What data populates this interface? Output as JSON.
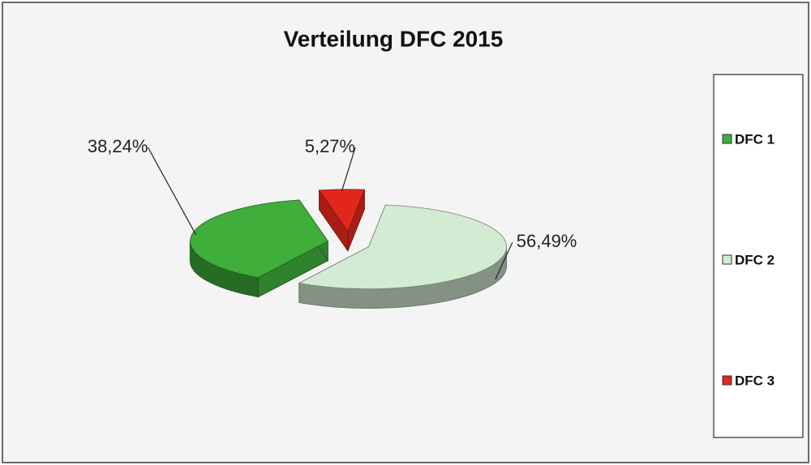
{
  "chart_data": {
    "type": "pie3d",
    "title": "Verteilung DFC 2015",
    "categories": [
      "DFC 1",
      "DFC 2",
      "DFC 3"
    ],
    "values": [
      38.24,
      56.49,
      5.27
    ],
    "value_labels": [
      "38,24%",
      "56,49%",
      "5,27%"
    ],
    "colors": [
      "#3fae3a",
      "#d3ebd3",
      "#e3261c"
    ],
    "legend": "right"
  }
}
